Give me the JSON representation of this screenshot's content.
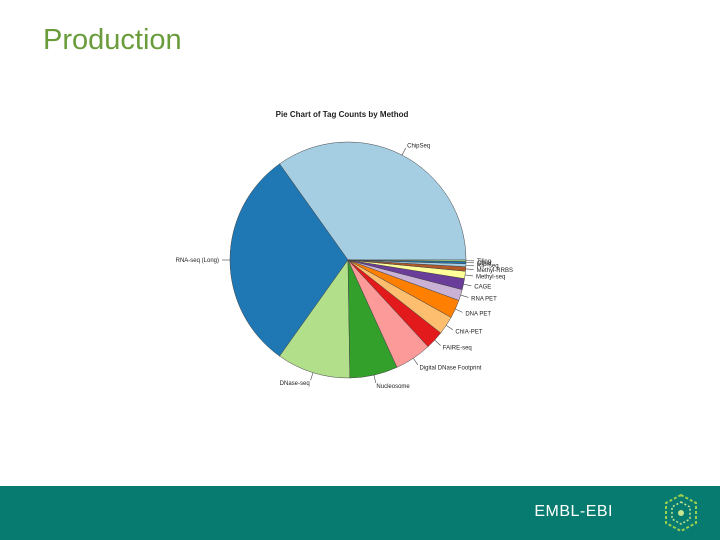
{
  "slide": {
    "title": "Production"
  },
  "footer": {
    "brand": "EMBL-EBI",
    "logo_icon": "hexagon-cube-icon",
    "background": "#087b71"
  },
  "chart_data": {
    "type": "pie",
    "title": "Pie Chart of Tag Counts by Method",
    "slices": [
      {
        "label": "ChipSeq",
        "value": 34.5,
        "color": "#a6cee3"
      },
      {
        "label": "RNA-seq (Long)",
        "value": 30.0,
        "color": "#1f78b4"
      },
      {
        "label": "DNase-seq",
        "value": 10.0,
        "color": "#b2df8a"
      },
      {
        "label": "Nucleosome",
        "value": 6.5,
        "color": "#33a02c"
      },
      {
        "label": "Digital DNase Footprint",
        "value": 5.0,
        "color": "#fb9a99"
      },
      {
        "label": "FAIRE-seq",
        "value": 2.5,
        "color": "#e31a1c"
      },
      {
        "label": "ChIA-PET",
        "value": 2.5,
        "color": "#fdbf6f"
      },
      {
        "label": "DNA PET",
        "value": 2.5,
        "color": "#ff7f00"
      },
      {
        "label": "RNA PET",
        "value": 1.5,
        "color": "#cab2d6"
      },
      {
        "label": "CAGE",
        "value": 1.5,
        "color": "#6a3d9a"
      },
      {
        "label": "Methyl-seq",
        "value": 1.0,
        "color": "#ffff99"
      },
      {
        "label": "Methyl-RRBS",
        "value": 0.6,
        "color": "#b15928"
      },
      {
        "label": "RIP-seq",
        "value": 0.4,
        "color": "#a6cee3"
      },
      {
        "label": "Other",
        "value": 0.3,
        "color": "#1f78b4"
      },
      {
        "label": "Tiling",
        "value": 0.2,
        "color": "#b2df8a"
      }
    ],
    "start_angle_deg": 0,
    "direction": "counterclockwise"
  }
}
